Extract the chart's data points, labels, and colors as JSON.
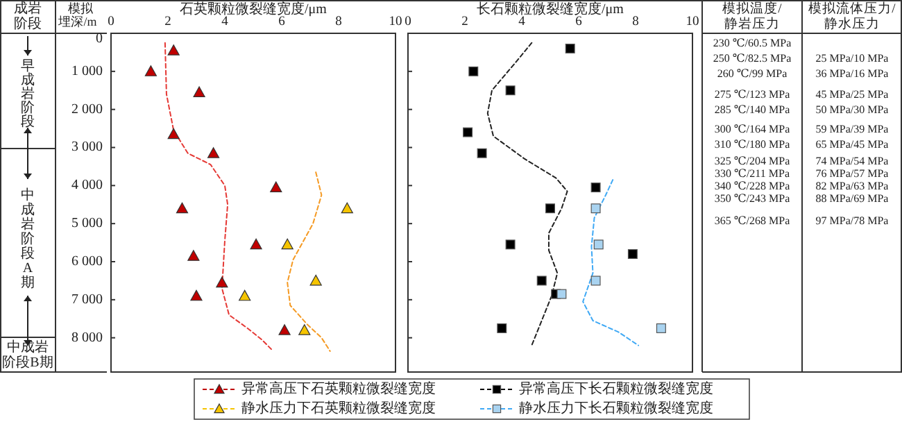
{
  "chart_data": [
    {
      "type": "scatter",
      "xlabel": "石英颗粒微裂缝宽度/μm",
      "ylabel": "模拟埋深/m",
      "xlim": [
        0,
        10
      ],
      "xticks": [
        0,
        2,
        4,
        6,
        8,
        10
      ],
      "ylim": [
        8900,
        0
      ],
      "yticks": [
        0,
        {
          "value": 1000,
          "label": "1 000"
        },
        {
          "value": 2000,
          "label": "2 000"
        },
        {
          "value": 3000,
          "label": "3 000"
        },
        {
          "value": 4000,
          "label": "4 000"
        },
        {
          "value": 5000,
          "label": "5 000"
        },
        {
          "value": 6000,
          "label": "6 000"
        },
        {
          "value": 7000,
          "label": "7 000"
        },
        {
          "value": 8000,
          "label": "8 000"
        }
      ],
      "marker": "triangle",
      "legend": "bottom",
      "annotations": [
        "成岩阶段",
        "早成岩阶段",
        "中成岩阶段A期",
        "中成岩阶段B期"
      ],
      "series": [
        {
          "name": "异常高压下石英颗粒微裂缝宽度",
          "color": "#c00000",
          "x": [
            2.2,
            1.4,
            3.1,
            2.2,
            3.6,
            5.8,
            2.5,
            5.1,
            2.9,
            3.9,
            3.0,
            6.1
          ],
          "values": [
            450,
            1000,
            1550,
            2650,
            3150,
            4050,
            4600,
            5550,
            5850,
            6550,
            6900,
            7800
          ]
        },
        {
          "name": "静水压力下石英颗粒微裂缝宽度",
          "color": "#f5c400",
          "x": [
            8.3,
            6.2,
            7.2,
            4.7,
            6.8
          ],
          "values": [
            4600,
            5550,
            6500,
            6900,
            7800
          ]
        },
        {
          "type": "line",
          "color": "#e53935",
          "line_style": "dashed",
          "marker": "none",
          "x": [
            1.9,
            1.95,
            2.2,
            2.7,
            3.5,
            4.0,
            4.1,
            4.0,
            3.9,
            4.15,
            4.8,
            5.3,
            5.7
          ],
          "values": [
            250,
            1600,
            2550,
            3150,
            3450,
            4000,
            4500,
            5450,
            6700,
            7400,
            7750,
            8050,
            8350
          ]
        },
        {
          "type": "line",
          "color": "#f59a23",
          "line_style": "dashed",
          "marker": "none",
          "x": [
            7.2,
            7.4,
            7.1,
            6.4,
            6.2,
            6.3,
            6.9,
            7.4,
            7.7
          ],
          "values": [
            3650,
            4250,
            5000,
            5950,
            6550,
            7150,
            7650,
            8000,
            8350
          ]
        }
      ]
    },
    {
      "type": "scatter",
      "xlabel": "长石颗粒微裂缝宽度/μm",
      "xlim": [
        0,
        10
      ],
      "xticks": [
        0,
        2,
        4,
        6,
        8,
        10
      ],
      "ylim": [
        8900,
        0
      ],
      "yticks": [
        1000,
        2000,
        3000,
        4000,
        5000,
        6000,
        7000,
        8000
      ],
      "tick_labels": "x",
      "marker": "square",
      "legend": "bottom",
      "series": [
        {
          "name": "异常高压下长石颗粒微裂缝宽度",
          "color": "#000000",
          "x": [
            5.7,
            2.3,
            3.6,
            2.1,
            2.6,
            6.6,
            5.0,
            3.6,
            7.9,
            4.7,
            5.2,
            3.3
          ],
          "values": [
            400,
            1000,
            1500,
            2600,
            3150,
            4050,
            4600,
            5550,
            5800,
            6500,
            6850,
            7750
          ]
        },
        {
          "name": "静水压力下长石颗粒微裂缝宽度",
          "color": "#a9d3f0",
          "x": [
            6.6,
            6.7,
            6.6,
            5.4,
            8.9
          ],
          "values": [
            4600,
            5550,
            6500,
            6850,
            7750
          ]
        },
        {
          "type": "line",
          "color": "#222222",
          "line_style": "dashed",
          "marker": "none",
          "x": [
            4.35,
            3.8,
            2.95,
            2.8,
            3.0,
            4.1,
            5.2,
            5.6,
            5.4,
            4.95,
            4.95,
            5.25,
            5.05,
            4.7,
            4.35
          ],
          "values": [
            250,
            750,
            1500,
            2100,
            2700,
            3300,
            3800,
            4150,
            4600,
            5250,
            5700,
            6300,
            6900,
            7550,
            8200
          ]
        },
        {
          "type": "line",
          "color": "#3fa9f5",
          "line_style": "dashed",
          "marker": "none",
          "x": [
            7.2,
            6.95,
            6.55,
            6.45,
            6.5,
            6.15,
            6.5,
            7.4,
            8.1
          ],
          "values": [
            3850,
            4250,
            4850,
            5600,
            6300,
            7050,
            7550,
            7850,
            8200
          ]
        }
      ]
    },
    {
      "type": "other",
      "title": "模拟温度/静岩压力",
      "annotations": [
        "230 ℃/60.5 MPa",
        "250 ℃/82.5 MPa",
        "260 ℃/99 MPa",
        "275 ℃/123 MPa",
        "285 ℃/140 MPa",
        "300 ℃/164 MPa",
        "310 ℃/180 MPa",
        "325 ℃/204 MPa",
        "330 ℃/211 MPa",
        "340 ℃/228 MPa",
        "350 ℃/243 MPa",
        "365 ℃/268 MPa"
      ]
    },
    {
      "type": "other",
      "title": "模拟流体压力/静水压力",
      "annotations": [
        "25 MPa/10 MPa",
        "36 MPa/16 MPa",
        "45 MPa/25 MPa",
        "50 MPa/30 MPa",
        "59 MPa/39 MPa",
        "65 MPa/45 MPa",
        "74 MPa/54 MPa",
        "76 MPa/57 MPa",
        "82 MPa/63 MPa",
        "88 MPa/69 MPa",
        "97 MPa/78 MPa"
      ]
    }
  ]
}
